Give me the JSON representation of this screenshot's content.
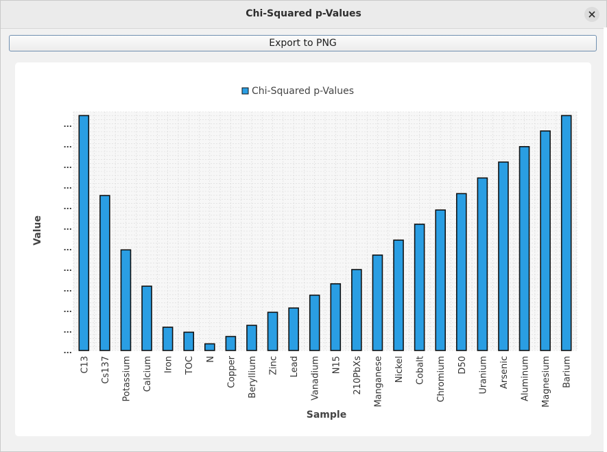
{
  "window": {
    "title": "Chi-Squared p-Values"
  },
  "toolbar": {
    "export_label": "Export to PNG"
  },
  "icons": {
    "close": "close-icon"
  },
  "colors": {
    "bar_fill": "#2a9ee3",
    "bar_stroke": "#111111",
    "grid": "#d8d8d8"
  },
  "chart_data": {
    "type": "bar",
    "legend": {
      "label": "Chi-Squared p-Values",
      "placement": "top-center"
    },
    "xlabel": "Sample",
    "ylabel": "Value",
    "ytick_labels": [
      "...",
      "...",
      "...",
      "...",
      "...",
      "...",
      "...",
      "...",
      "...",
      "...",
      "...",
      "..."
    ],
    "ylim": [
      0,
      1
    ],
    "grid": true,
    "categories": [
      "C13",
      "Cs137",
      "Potassium",
      "Calcium",
      "Iron",
      "TOC",
      "N",
      "Copper",
      "Beryllium",
      "Zinc",
      "Lead",
      "Vanadium",
      "N15",
      "210PbXs",
      "Manganese",
      "Nickel",
      "Cobalt",
      "Chromium",
      "D50",
      "Uranium",
      "Arsenic",
      "Aluminum",
      "Magnesium",
      "Barium"
    ],
    "series": [
      {
        "name": "Chi-Squared p-Values",
        "values": [
          0.99,
          0.653,
          0.424,
          0.271,
          0.098,
          0.077,
          0.028,
          0.059,
          0.106,
          0.161,
          0.179,
          0.233,
          0.281,
          0.341,
          0.402,
          0.465,
          0.532,
          0.592,
          0.661,
          0.727,
          0.794,
          0.859,
          0.925,
          0.99
        ]
      }
    ]
  }
}
